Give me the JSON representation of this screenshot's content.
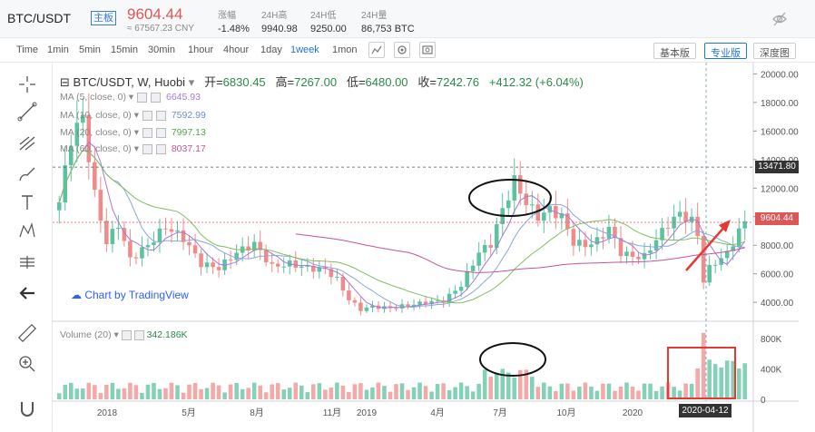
{
  "ticker": {
    "symbol": "BTC/USDT",
    "badge": "主板",
    "price": "9604.44",
    "cny": "≈ 67567.23 CNY",
    "change_label": "涨幅",
    "change_value": "-1.48%",
    "high_label": "24H高",
    "high_value": "9940.98",
    "low_label": "24H低",
    "low_value": "9250.00",
    "vol_label": "24H量",
    "vol_value": "86,753 BTC"
  },
  "toolbar": {
    "time_label": "Time",
    "intervals": [
      "1min",
      "5min",
      "15min",
      "30min",
      "1hour",
      "4hour",
      "1day",
      "1week",
      "1mon"
    ],
    "active_interval": "1week",
    "view_basic": "基本版",
    "view_pro": "专业版",
    "view_depth": "深度图"
  },
  "legend": {
    "title": "BTC/USDT, W, Huobi",
    "open_label": "开=",
    "open": "6830.45",
    "high_label": "高=",
    "high": "7267.00",
    "low_label": "低=",
    "low": "6480.00",
    "close_label": "收=",
    "close": "7242.76",
    "change": "+412.32 (+6.04%)",
    "ma": [
      {
        "label": "MA (5, close, 0)",
        "value": "6645.93",
        "color": "#a679d6"
      },
      {
        "label": "MA (10, close, 0)",
        "value": "7592.99",
        "color": "#8aa7d8"
      },
      {
        "label": "MA (20, close, 0)",
        "value": "7997.13",
        "color": "#7fbf5c"
      },
      {
        "label": "MA (60, close, 0)",
        "value": "8037.17",
        "color": "#c6539a"
      }
    ],
    "volume_label": "Volume (20)",
    "volume_value": "342.186K",
    "tv_text": "Chart by TradingView"
  },
  "chart_data": {
    "type": "candlestick",
    "price_axis": {
      "ticks": [
        "20000.00",
        "18000.00",
        "16000.00",
        "14000.00",
        "12000.00",
        "10000.00",
        "8000.00",
        "6000.00",
        "4000.00"
      ],
      "ylim": [
        2800,
        20600
      ]
    },
    "volume_axis": {
      "ticks": [
        "800K",
        "400K",
        "0"
      ],
      "ylim": [
        0,
        1000
      ]
    },
    "x_ticks": [
      "2018",
      "5月",
      "8月",
      "11月",
      "2019",
      "4月",
      "7月",
      "10月",
      "2020"
    ],
    "price_tags": [
      {
        "value": "13471.80",
        "color": "#333333"
      },
      {
        "value": "9604.44",
        "color": "#e05656"
      }
    ],
    "date_tag": "2020-04-12",
    "up_color": "#5cc2a0",
    "down_color": "#f08b8b"
  },
  "colors": {
    "accent": "#1e74d8",
    "up": "#5cc2a0",
    "down": "#e05656",
    "annotation": "#e53935"
  }
}
